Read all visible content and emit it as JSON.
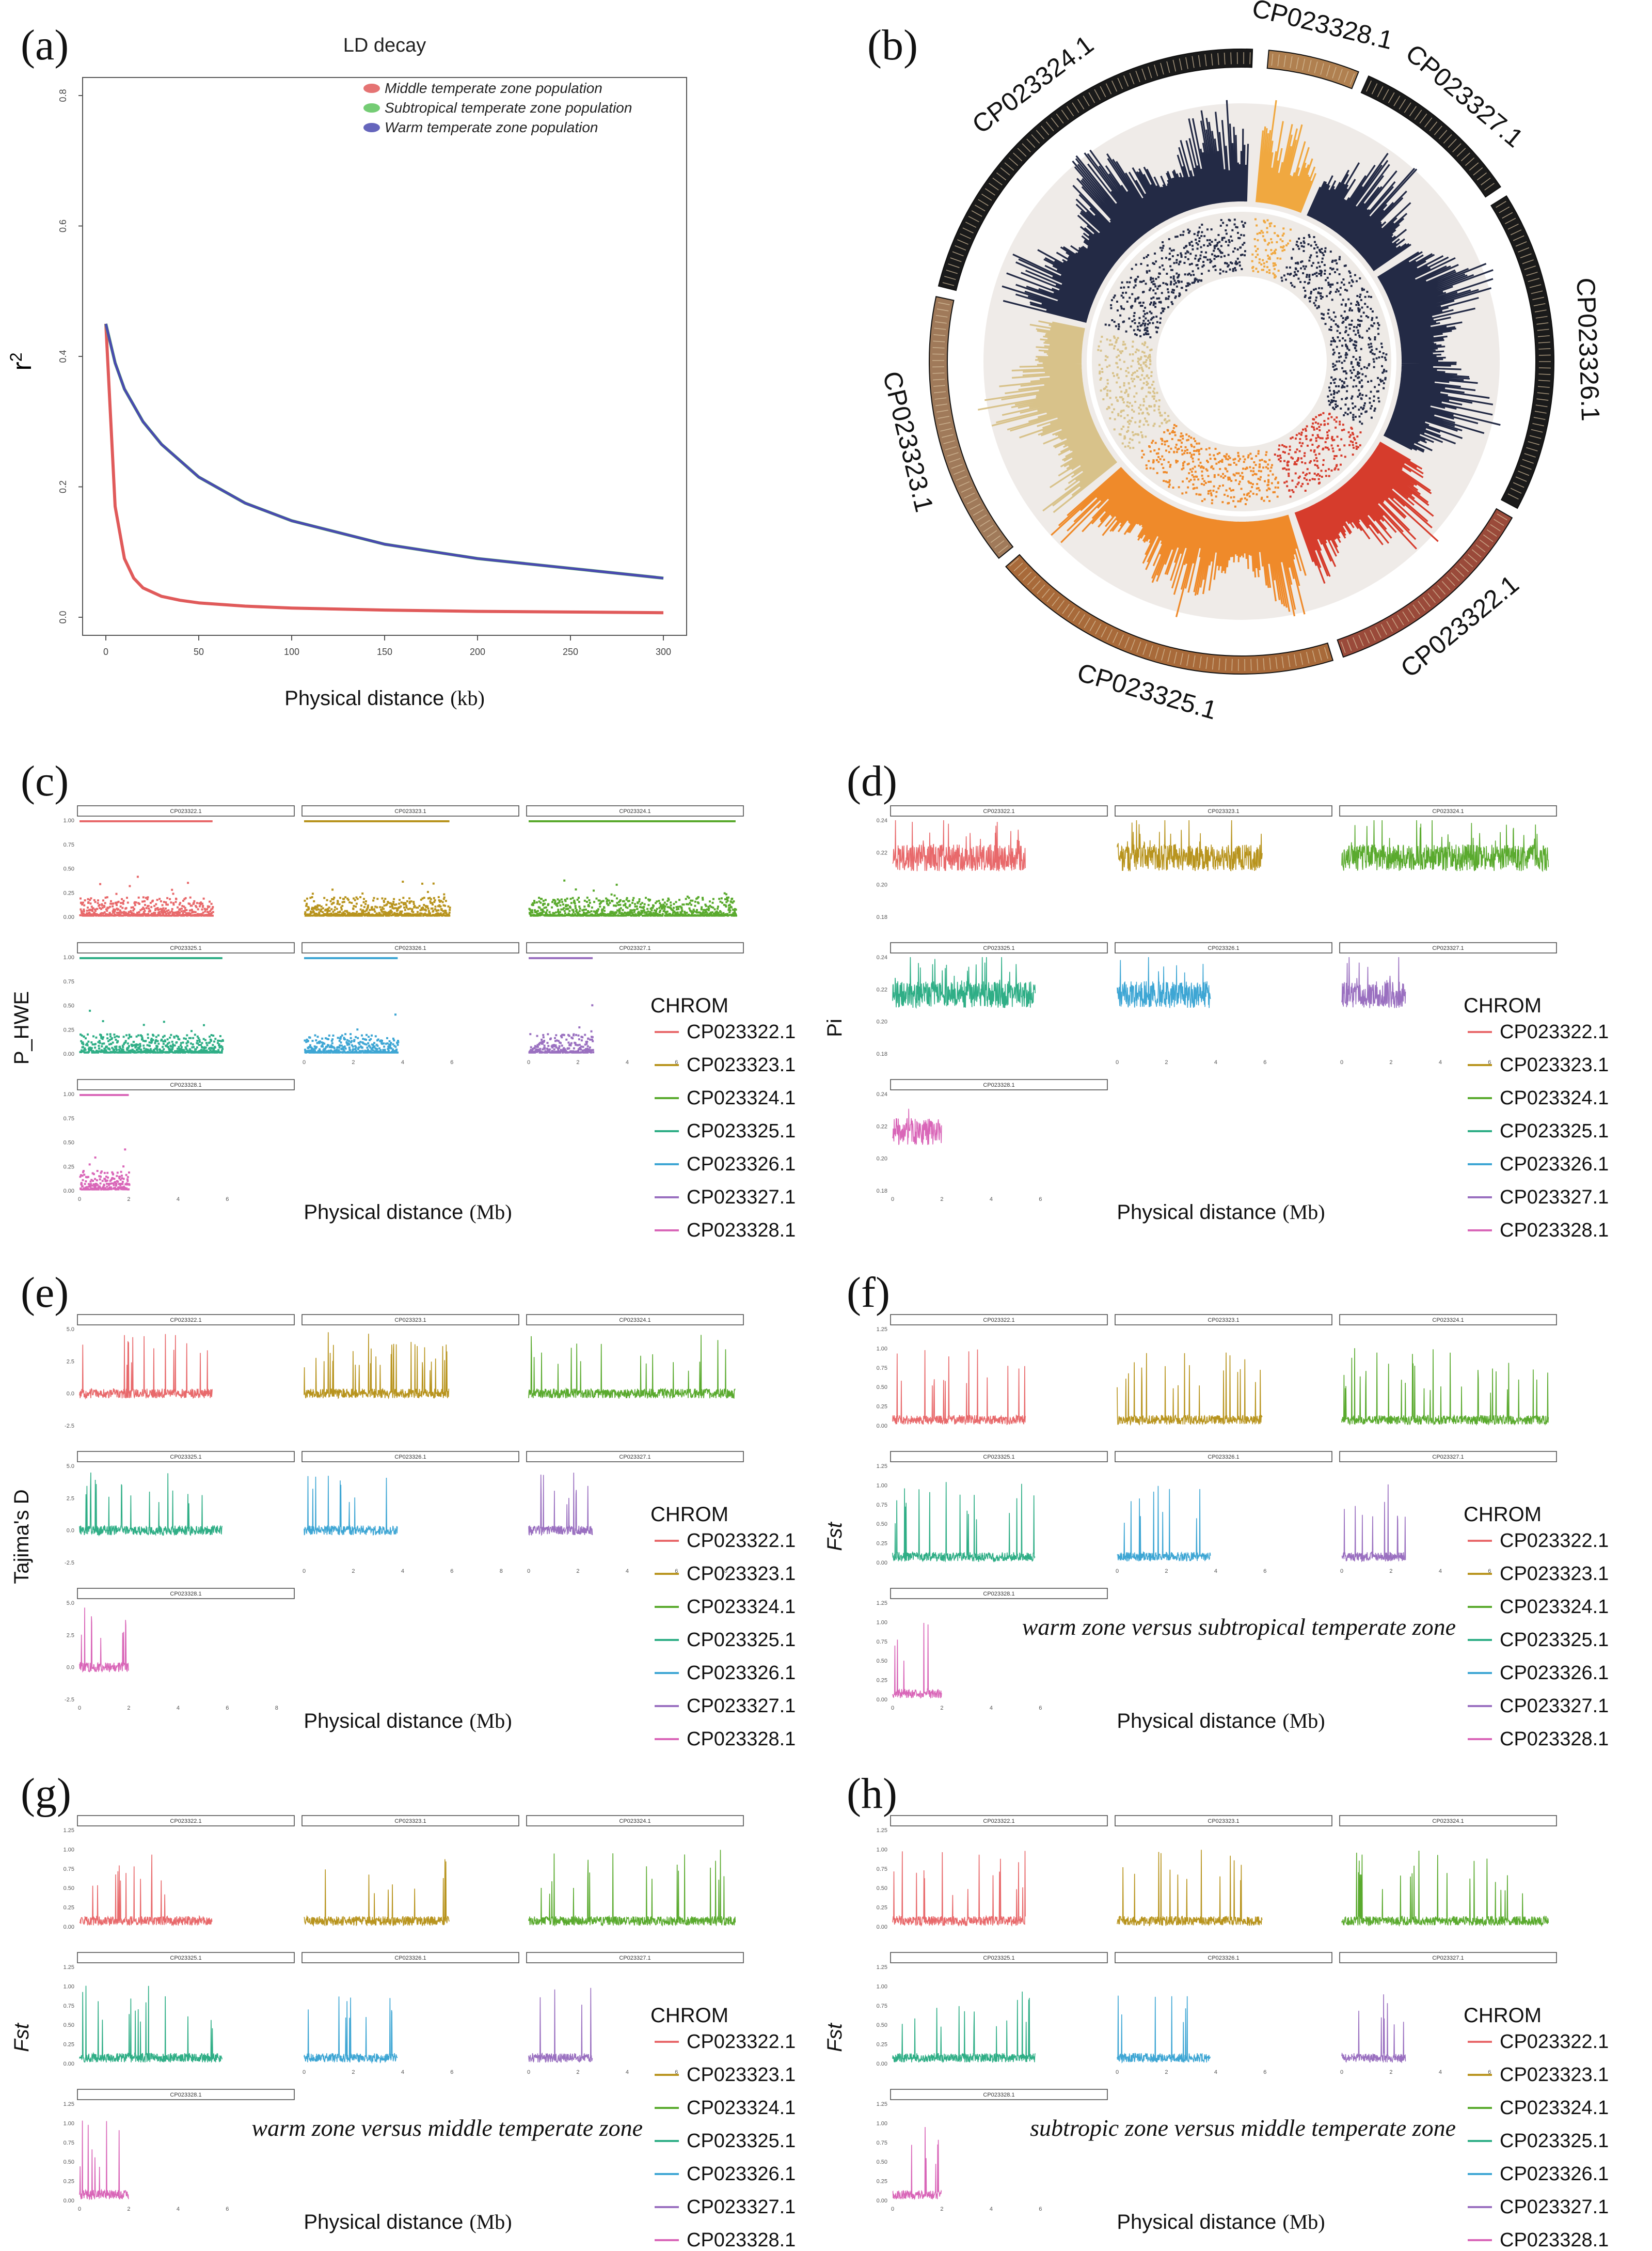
{
  "panels": {
    "a": {
      "label": "(a)"
    },
    "b": {
      "label": "(b)"
    },
    "c": {
      "label": "(c)"
    },
    "d": {
      "label": "(d)"
    },
    "e": {
      "label": "(e)"
    },
    "f": {
      "label": "(f)"
    },
    "g": {
      "label": "(g)"
    },
    "h": {
      "label": "(h)"
    }
  },
  "chrom_colors": {
    "CP023322.1": "#e8696b",
    "CP023323.1": "#b8941e",
    "CP023324.1": "#5aaa2e",
    "CP023325.1": "#2fae86",
    "CP023326.1": "#3ea6d4",
    "CP023327.1": "#9a70c0",
    "CP023328.1": "#d966b8"
  },
  "manhattan_titles": {
    "c": {
      "ylabel": "P_HWE",
      "xlabel": "Physical distance",
      "xunit": "(Mb)",
      "legend_title": "CHROM",
      "annotation": ""
    },
    "d": {
      "ylabel": "Pi",
      "xlabel": "Physical distance",
      "xunit": "(Mb)",
      "legend_title": "CHROM",
      "annotation": ""
    },
    "e": {
      "ylabel": "Tajima's D",
      "xlabel": "Physical distance",
      "xunit": "(Mb)",
      "legend_title": "CHROM",
      "annotation": ""
    },
    "f": {
      "ylabel": "Fst",
      "xlabel": "Physical distance",
      "xunit": "(Mb)",
      "legend_title": "CHROM",
      "annotation": "warm  zone versus subtropical temperate zone"
    },
    "g": {
      "ylabel": "Fst",
      "xlabel": "Physical distance",
      "xunit": "(Mb)",
      "legend_title": "CHROM",
      "annotation": "warm  zone versus middle temperate zone"
    },
    "h": {
      "ylabel": "Fst",
      "xlabel": "Physical distance",
      "xunit": "(Mb)",
      "legend_title": "CHROM",
      "annotation": "subtropic  zone versus middle temperate zone"
    }
  },
  "circos": {
    "chromosomes": [
      "CP023322.1",
      "CP023323.1",
      "CP023324.1",
      "CP023325.1",
      "CP023326.1",
      "CP023327.1",
      "CP023328.1"
    ],
    "chrom_labels": {
      "CP023322.1": "CP023322.1",
      "CP023323.1": "CP023323.1",
      "CP023324.1": "CP023324.1",
      "CP023325.1": "CP023325.1",
      "CP023326.1": "CP023326.1",
      "CP023327.1": "CP023327.1",
      "CP023328.1": "CP023328.1"
    }
  },
  "chart_data": [
    {
      "panel": "a",
      "type": "line",
      "title": "LD decay",
      "xlabel": "Physical distance",
      "xunit": "(kb)",
      "ylabel": "r",
      "ylabel_sup": "2",
      "xlim": [
        0,
        300
      ],
      "ylim": [
        0,
        0.8
      ],
      "xticks": [
        "0",
        "50",
        "100",
        "150",
        "200",
        "250",
        "300"
      ],
      "yticks": [
        "0.0",
        "0.2",
        "0.4",
        "0.6",
        "0.8"
      ],
      "legend": [
        "Middle temperate zone population",
        "Subtropical temperate zone population",
        "Warm temperate zone population"
      ],
      "legend_colors": [
        "#e05a5a",
        "#5cc35c",
        "#4a4ab0"
      ],
      "series": [
        {
          "name": "Middle temperate zone population",
          "color": "#e05a5a",
          "x": [
            0,
            5,
            10,
            15,
            20,
            30,
            40,
            50,
            75,
            100,
            150,
            200,
            250,
            300
          ],
          "y": [
            0.45,
            0.17,
            0.09,
            0.06,
            0.045,
            0.032,
            0.026,
            0.022,
            0.017,
            0.014,
            0.011,
            0.009,
            0.008,
            0.007
          ]
        },
        {
          "name": "Subtropical temperate zone population",
          "color": "#5cc35c",
          "x": [
            0,
            5,
            10,
            20,
            30,
            50,
            75,
            100,
            150,
            200,
            250,
            300
          ],
          "y": [
            0.45,
            0.39,
            0.35,
            0.3,
            0.265,
            0.215,
            0.175,
            0.148,
            0.112,
            0.09,
            0.075,
            0.06
          ]
        },
        {
          "name": "Warm temperate zone population",
          "color": "#4a4ab0",
          "x": [
            0,
            5,
            10,
            20,
            30,
            50,
            75,
            100,
            150,
            200,
            250,
            300
          ],
          "y": [
            0.45,
            0.39,
            0.35,
            0.3,
            0.265,
            0.215,
            0.175,
            0.148,
            0.112,
            0.09,
            0.075,
            0.06
          ]
        }
      ]
    },
    {
      "panel": "c",
      "type": "scatter",
      "metric": "P_HWE",
      "ylim": [
        0,
        1
      ],
      "yticks": [
        "0.00",
        "0.25",
        "0.50",
        "0.75",
        "1.00"
      ],
      "xticks": [
        "0",
        "2",
        "4",
        "6"
      ],
      "baseline": 0.02,
      "spread": 0.12,
      "peak": 0.32,
      "topband": 1.0
    },
    {
      "panel": "d",
      "type": "line",
      "metric": "Pi",
      "ylim": [
        0.15,
        0.24
      ],
      "yticks": [
        "0.18",
        "0.20",
        "0.22",
        "0.24"
      ],
      "xticks": [
        "0",
        "2",
        "4",
        "6"
      ],
      "baseline": 0.2,
      "spread": 0.025,
      "peak": 0.235
    },
    {
      "panel": "e",
      "type": "line",
      "metric": "Tajima's D",
      "ylim": [
        -2.5,
        5.5
      ],
      "yticks": [
        "-2.5",
        "0.0",
        "2.5",
        "5.0"
      ],
      "xticks": [
        "0",
        "2",
        "4",
        "6",
        "8"
      ],
      "baseline": 0.0,
      "spread": 0.8,
      "peak": 5.0
    },
    {
      "panel": "f",
      "type": "line",
      "metric": "Fst",
      "comparison": "warm zone versus subtropical temperate zone",
      "ylim": [
        0,
        1.25
      ],
      "yticks": [
        "0.00",
        "0.25",
        "0.50",
        "0.75",
        "1.00",
        "1.25"
      ],
      "xticks": [
        "0",
        "2",
        "4",
        "6"
      ],
      "baseline": 0.05,
      "spread": 0.12,
      "peak": 1.0
    },
    {
      "panel": "g",
      "type": "line",
      "metric": "Fst",
      "comparison": "warm zone versus middle temperate zone",
      "ylim": [
        0,
        1.25
      ],
      "yticks": [
        "0.00",
        "0.25",
        "0.50",
        "0.75",
        "1.00",
        "1.25"
      ],
      "xticks": [
        "0",
        "2",
        "4",
        "6"
      ],
      "baseline": 0.05,
      "spread": 0.12,
      "peak": 1.0
    },
    {
      "panel": "h",
      "type": "line",
      "metric": "Fst",
      "comparison": "subtropic zone versus middle temperate zone",
      "ylim": [
        0,
        1.25
      ],
      "yticks": [
        "0.00",
        "0.25",
        "0.50",
        "0.75",
        "1.00",
        "1.25"
      ],
      "xticks": [
        "0",
        "2",
        "4",
        "6"
      ],
      "baseline": 0.05,
      "spread": 0.12,
      "peak": 1.0
    }
  ]
}
